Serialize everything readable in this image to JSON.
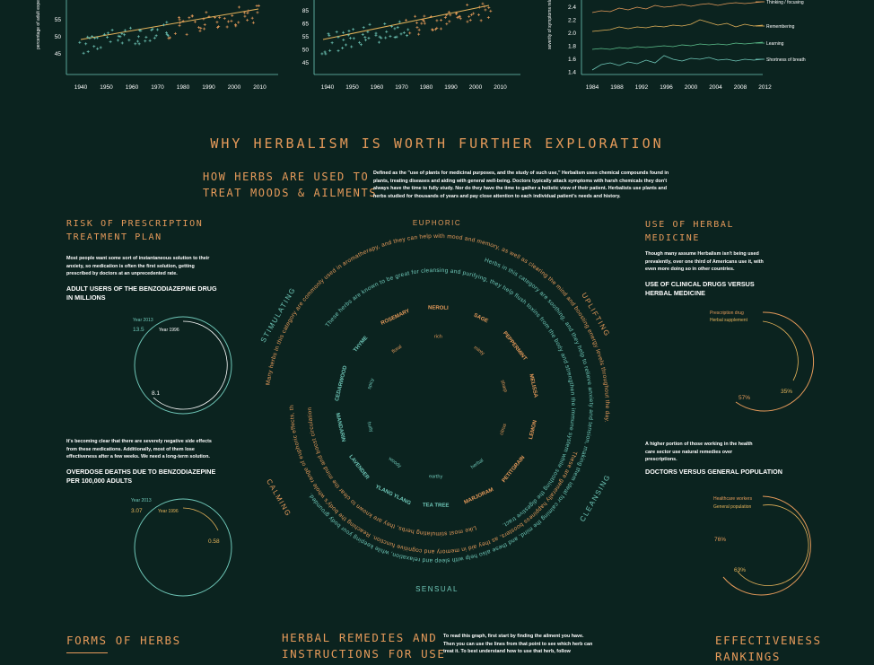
{
  "top_charts": {
    "left": {
      "ylabel": "percentage of adult experiencing symp",
      "y_ticks": [
        "55",
        "50",
        "45"
      ],
      "x_ticks": [
        "1940",
        "1950",
        "1960",
        "1970",
        "1980",
        "1990",
        "2000",
        "2010"
      ]
    },
    "middle": {
      "y_ticks": [
        "85",
        "65",
        "55",
        "50",
        "45"
      ],
      "x_ticks": [
        "1940",
        "1950",
        "1960",
        "1970",
        "1980",
        "1990",
        "2000",
        "2010"
      ]
    },
    "right": {
      "ylabel": "severity of symptoms related to mental st",
      "y_ticks": [
        "2.4",
        "2.2",
        "2.0",
        "1.8",
        "1.6",
        "1.4"
      ],
      "x_ticks": [
        "1984",
        "1988",
        "1992",
        "1996",
        "2000",
        "2004",
        "2008",
        "2012"
      ],
      "legend": [
        "Thinking / focusing",
        "Remembering",
        "Learning",
        "Shortness of breath"
      ]
    }
  },
  "main_title": "WHY HERBALISM IS WORTH FURTHER EXPLORATION",
  "herbs_section": {
    "title_line1": "HOW HERBS ARE USED TO",
    "title_line2": "TREAT MOODS & AILMENTS",
    "description": "Defined as the \"use of plants for medicinal purposes, and the study of such use,\" Herbalism uses chemical compounds found in plants, treating diseases and aiding with general well-being. Doctors typically attack symptoms with harsh chemicals they don't always have the time to fully study. Nor do they have the time to gather a holistic view of their patient. Herbalists use plants and herbs studied for thousands of years and pay close attention to each individual patient's needs and history."
  },
  "risk_section": {
    "title_line1": "RISK OF PRESCRIPTION",
    "title_line2": "TREATMENT PLAN",
    "text1": "Most people want some sort of instantaneous solution to their anxiety, so medication is often the first solution, getting prescribed by doctors at an unprecedented rate.",
    "caption1": "ADULT USERS OF THE BENZODIAZEPINE DRUG IN MILLIONS",
    "chart1": {
      "label_2013": "Year 2013",
      "value_2013": "13.5",
      "label_1996": "Year 1996",
      "value_1996": "8.1"
    },
    "text2": "It's becoming clear that there are severely negative side effects from these medications. Additionally, most of them lose effectiveness after a few weeks. We need a long-term solution.",
    "caption2": "OVERDOSE DEATHS DUE TO BENZODIAZEPINE PER 100,000 ADULTS",
    "chart2": {
      "label_2013": "Year 2013",
      "value_2013": "3.07",
      "label_1996": "Year 1996",
      "value_1996": "0.58"
    }
  },
  "herbal_medicine_section": {
    "title_line1": "USE OF HERBAL",
    "title_line2": "MEDICINE",
    "text1": "Though many assume Herbalism isn't being used prevalently, over one third of Americans use it, with even more doing so in other countries.",
    "caption1": "USE OF CLINICAL DRUGS VERSUS HERBAL MEDICINE",
    "chart1": {
      "legend1": "Prescription drug",
      "legend2": "Herbal supplement",
      "value1": "57%",
      "value2": "35%"
    },
    "text2": "A higher portion of those working in the health care sector use natural remedies over prescriptions.",
    "caption2": "DOCTORS VERSUS GENERAL POPULATION",
    "chart2": {
      "legend1": "Healthcare workers",
      "legend2": "General population",
      "value1": "76%",
      "value2": "63%"
    }
  },
  "wheel": {
    "moods": [
      "EUPHORIC",
      "UPLIFTING",
      "CLEANSING",
      "SENSUAL",
      "CALMING",
      "STIMULATING"
    ],
    "herbs": [
      "ROSEMARY",
      "NEROLI",
      "SAGE",
      "PEPPERMINT",
      "MELISSA",
      "LEMON",
      "PETITGRAIN",
      "MARJORAM",
      "TEA TREE",
      "YLANG YLANG",
      "LAVENDER",
      "MANDARIN",
      "CEDARWOOD",
      "THYME"
    ],
    "inner_words": [
      "floral",
      "rich",
      "minty",
      "sharp",
      "citrus",
      "herbal",
      "earthy",
      "woody",
      "fruity",
      "spicy"
    ],
    "ring_text_orange": "These are generally happiness boosters, as they aid in memory and cognitive function. Reaching the body's whole range of euphoric effects, they help relieve stress and ease fatigue. Good for uplifting spirits and restoring energy in the body.",
    "ring_text_teal": "Herbs in this category are soothing, and they help to relieve anxiety and tension, making them ideal for calming the mind, and these also help with sleep and relaxation, while keeping your body grounded.",
    "ring_text_orange2": "Many herbs in this category are commonly used in aromatherapy, and they can help with mood and memory, as well as clearing the mind and boosting energy levels throughout the day.",
    "ring_text_teal2": "These herbs are known to be great for cleansing and purifying, they help flush toxins from the body and strengthen the immune system while soothing the digestive tract.",
    "ring_text_orange3": "Like most stimulating herbs, they are known to clear the mind and boost circulation, helping the body repair itself and fight off illness."
  },
  "bottom": {
    "forms_title": "FORMS OF HERBS",
    "remedies_title_line1": "HERBAL REMEDIES AND",
    "remedies_title_line2": "INSTRUCTIONS FOR USE",
    "graph_instructions": "To read this graph, first start by finding the ailment you have. Then you can use the lines from that point to see which herb can treat it. To best understand how to use that herb, follow",
    "effectiveness_title_line1": "EFFECTIVENESS",
    "effectiveness_title_line2": "RANKINGS"
  },
  "colors": {
    "background": "#0b231f",
    "orange": "#e59a5a",
    "teal": "#6fc7b8",
    "white": "#ffffff"
  }
}
